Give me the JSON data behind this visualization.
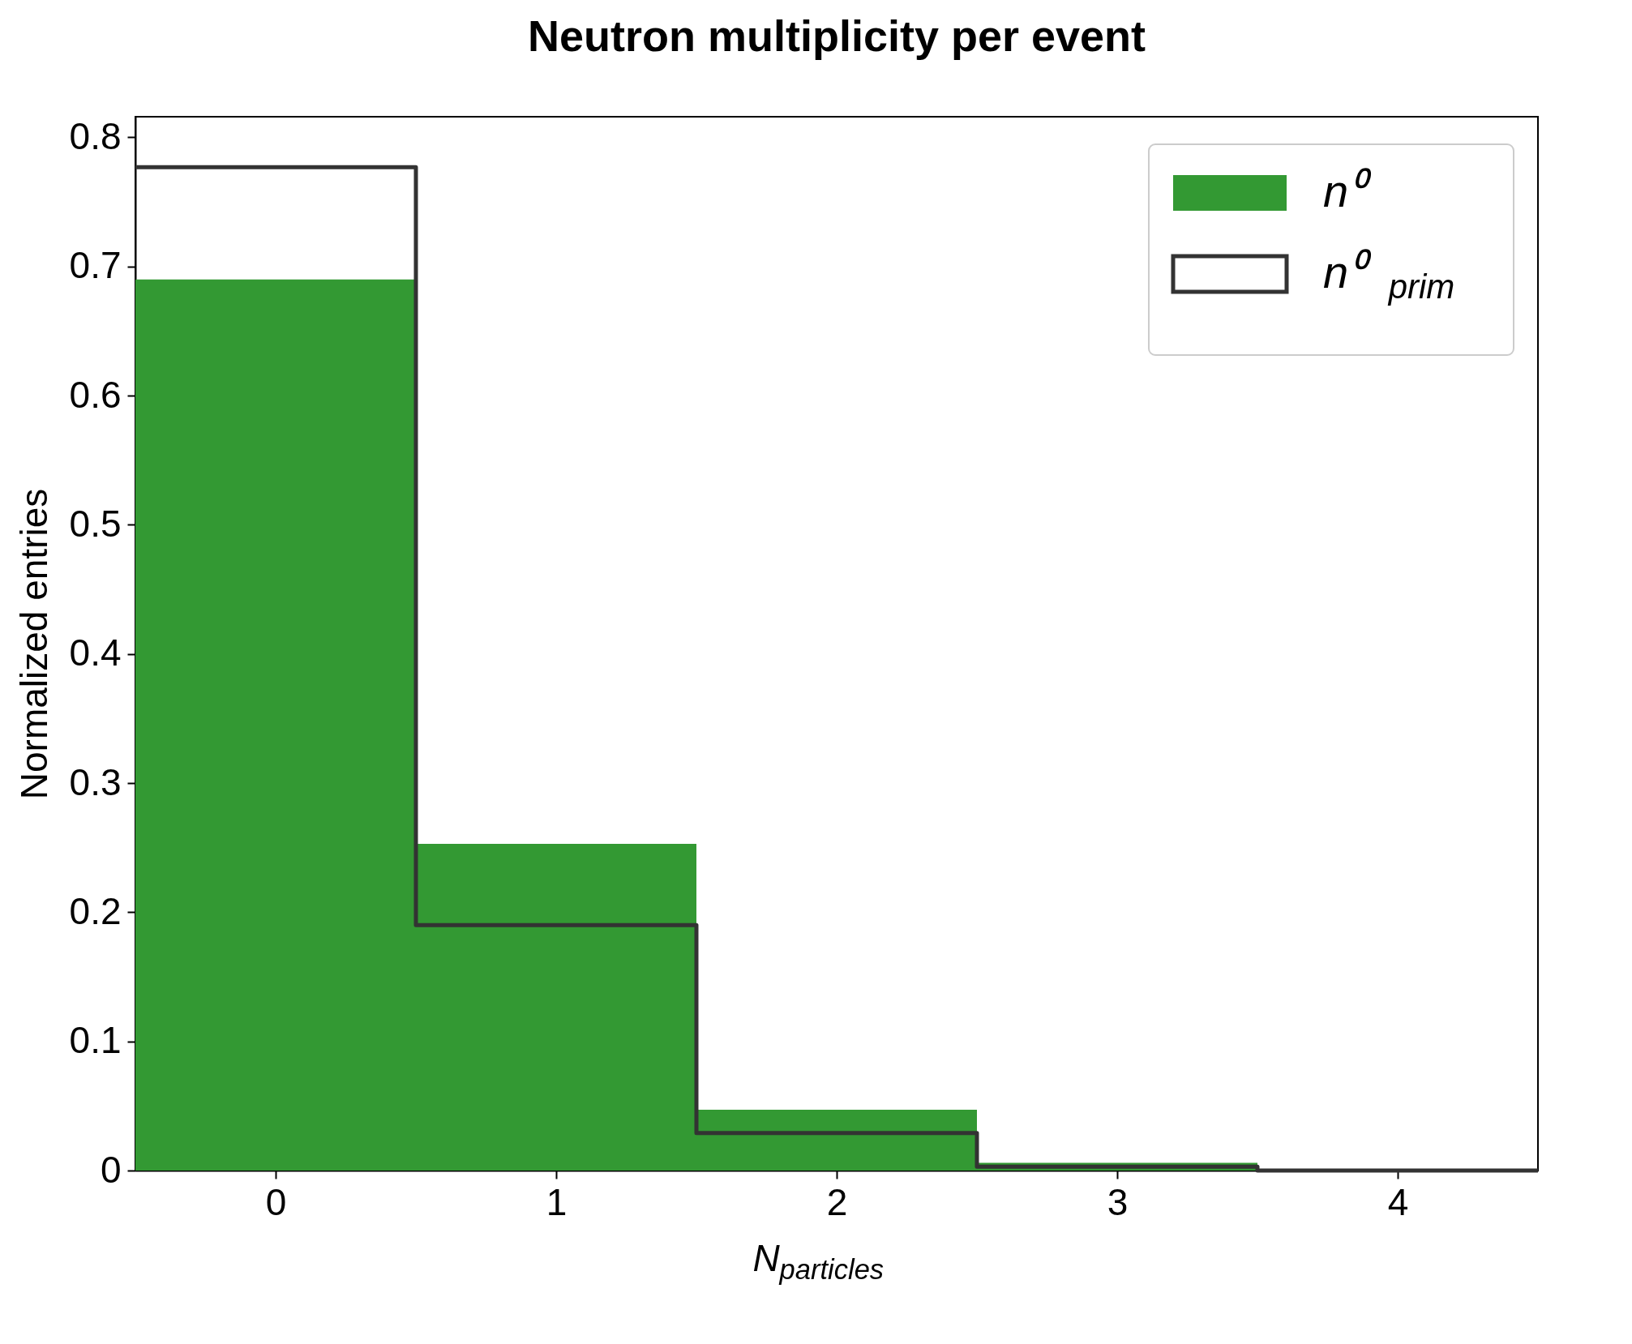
{
  "chart_data": {
    "type": "histogram",
    "title": "Neutron multiplicity per event",
    "xlabel": "N$_{particles}$",
    "ylabel": "Normalized entries",
    "bins": [
      -0.5,
      0.5,
      1.5,
      2.5,
      3.5,
      4.5
    ],
    "series": [
      {
        "name": "n⁰",
        "color": "#339933",
        "values": [
          0.69,
          0.253,
          0.047,
          0.006,
          null
        ]
      },
      {
        "name": "n⁰$_{prim}$",
        "color": "#333333",
        "type": "step",
        "x": [
          -0.5,
          0.5,
          1.5,
          2.5,
          3.5,
          4.5
        ],
        "values": [
          0.777,
          0.19,
          0.029,
          0.003,
          0.0,
          0.0
        ]
      }
    ],
    "xlim": [
      -0.5,
      4.5
    ],
    "xticks": [
      0,
      1,
      2,
      3,
      4
    ],
    "ylim": [
      0,
      0.816
    ],
    "yticks": [
      0,
      0.1,
      0.2,
      0.3,
      0.4,
      0.5,
      0.6,
      0.7,
      0.8
    ],
    "grid": false,
    "legend": "top right"
  }
}
